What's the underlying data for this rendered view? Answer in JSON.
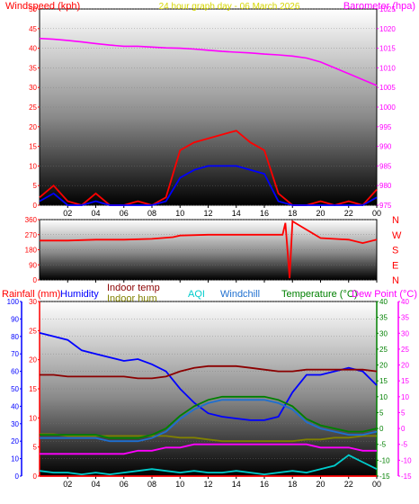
{
  "colors": {
    "windspeed": "#ff0000",
    "gust": "#0000ff",
    "barometer": "#ff00ff",
    "title": "#d6d600",
    "direction": "#ff0000",
    "rainfall": "#ff0000",
    "humidity": "#0000ff",
    "indoor_temp": "#8b0000",
    "indoor_hum": "#808000",
    "aqi": "#00cccc",
    "windchill": "#1e6fd0",
    "temperature": "#008000",
    "dew_point": "#ff00ff"
  },
  "x_ticks": [
    "02",
    "04",
    "06",
    "08",
    "10",
    "12",
    "14",
    "16",
    "18",
    "20",
    "22",
    "00"
  ],
  "chart_data": [
    {
      "type": "line",
      "title": "24 hour graph day - 06 March 2026",
      "ylabel_left": "Windspeed (kph)",
      "ylabel_right": "Barometer (hpa)",
      "ylim_left": [
        0,
        50
      ],
      "ylim_right": [
        975,
        1025
      ],
      "y_ticks_left": [
        0,
        5,
        10,
        15,
        20,
        25,
        30,
        35,
        40,
        45,
        50
      ],
      "y_ticks_right": [
        975,
        980,
        985,
        990,
        995,
        1000,
        1005,
        1010,
        1015,
        1020,
        1025
      ],
      "x": [
        0,
        1,
        2,
        3,
        4,
        5,
        6,
        7,
        8,
        9,
        10,
        11,
        12,
        13,
        14,
        15,
        16,
        17,
        18,
        19,
        20,
        21,
        22,
        23,
        24
      ],
      "series": [
        {
          "name": "Windspeed",
          "axis": "left",
          "values": [
            2,
            5,
            1,
            0,
            3,
            0,
            0,
            1,
            0,
            2,
            14,
            16,
            17,
            18,
            19,
            16,
            14,
            3,
            0,
            0,
            1,
            0,
            1,
            0,
            4
          ]
        },
        {
          "name": "Gust",
          "axis": "left",
          "values": [
            1,
            3,
            0,
            0,
            1,
            0,
            0,
            0,
            0,
            1,
            7,
            9,
            10,
            10,
            10,
            9,
            8,
            1,
            0,
            0,
            0,
            0,
            0,
            0,
            2
          ]
        },
        {
          "name": "Barometer",
          "axis": "right",
          "values": [
            1017.5,
            1017.3,
            1017,
            1016.6,
            1016.2,
            1015.8,
            1015.5,
            1015.5,
            1015.3,
            1015.1,
            1015.0,
            1014.8,
            1014.5,
            1014.2,
            1014.0,
            1013.8,
            1013.5,
            1013.3,
            1013.0,
            1012.5,
            1011.5,
            1010.0,
            1008.5,
            1007.0,
            1005.5
          ]
        }
      ]
    },
    {
      "type": "line",
      "title": "",
      "ylim": [
        0,
        360
      ],
      "y_ticks": [
        0,
        90,
        180,
        270,
        360
      ],
      "compass_labels": [
        "N",
        "W",
        "S",
        "E",
        "N"
      ],
      "x": [
        0,
        2,
        4,
        6,
        8,
        9.5,
        10,
        12,
        14,
        16,
        17.3,
        17.5,
        17.8,
        18,
        20,
        22,
        23,
        24
      ],
      "series": [
        {
          "name": "Wind direction",
          "values": [
            235,
            235,
            240,
            240,
            245,
            255,
            265,
            270,
            270,
            270,
            270,
            340,
            10,
            350,
            250,
            240,
            220,
            240
          ]
        }
      ]
    },
    {
      "type": "line",
      "title": "",
      "axes": [
        {
          "label": "Rainfall (mm)",
          "ticks": [
            0,
            5,
            10,
            15,
            20,
            25,
            30,
            35,
            40,
            45,
            50,
            55,
            60,
            65,
            70,
            75,
            80,
            85,
            90,
            95,
            100
          ]
        },
        {
          "label": "Humidity",
          "ticks": [
            0,
            5,
            10,
            15,
            20,
            25,
            30
          ]
        },
        {
          "label": "Temperature (°C)",
          "ticks": [
            -15,
            -10,
            -5,
            0,
            5,
            10,
            15,
            20,
            25,
            30,
            35,
            40
          ]
        },
        {
          "label": "Dew Point (°C)",
          "ticks": [
            -15,
            -10,
            -5,
            0,
            5,
            10,
            15,
            20,
            25,
            30,
            35,
            40
          ]
        }
      ],
      "legend": [
        "Indoor temp",
        "Indoor hum",
        "AQI",
        "Windchill"
      ],
      "humidity_ticks": [
        0,
        10,
        20,
        30,
        40,
        50,
        60,
        70,
        80,
        90,
        100
      ],
      "x": [
        0,
        1,
        2,
        3,
        4,
        5,
        6,
        7,
        8,
        9,
        10,
        11,
        12,
        13,
        14,
        15,
        16,
        17,
        18,
        19,
        20,
        21,
        22,
        23,
        24
      ],
      "series": [
        {
          "name": "Humidity",
          "axis": "Rainfall (mm)",
          "values": [
            82,
            80,
            78,
            72,
            70,
            68,
            66,
            67,
            64,
            60,
            50,
            42,
            36,
            34,
            33,
            32,
            32,
            34,
            48,
            58,
            58,
            60,
            62,
            60,
            52
          ]
        },
        {
          "name": "Indoor temp",
          "axis": "Rainfall (mm)",
          "values": [
            58,
            58,
            57,
            57,
            57,
            57,
            57,
            56,
            56,
            57,
            60,
            62,
            63,
            63,
            63,
            62,
            61,
            60,
            60,
            61,
            61,
            61,
            61,
            61,
            60
          ]
        },
        {
          "name": "Indoor hum",
          "axis": "Rainfall (mm)",
          "values": [
            24,
            24,
            23,
            23,
            23,
            23,
            23,
            23,
            23,
            23,
            22,
            22,
            21,
            20,
            20,
            20,
            20,
            20,
            20,
            21,
            21,
            22,
            22,
            23,
            23
          ]
        },
        {
          "name": "Temperature",
          "axis": "Temperature (°C)",
          "values": [
            -2,
            -2,
            -2,
            -2,
            -2,
            -3,
            -3,
            -3,
            -2,
            0,
            4,
            7,
            9,
            10,
            10,
            10,
            10,
            9,
            7,
            3,
            1,
            0,
            -1,
            -1,
            0
          ]
        },
        {
          "name": "Windchill",
          "axis": "Temperature (°C)",
          "values": [
            -3,
            -3,
            -3,
            -3,
            -3,
            -4,
            -4,
            -4,
            -3,
            -1,
            3,
            6,
            8,
            9,
            9,
            9,
            9,
            8,
            6,
            2,
            0,
            -1,
            -2,
            -2,
            -1
          ]
        },
        {
          "name": "Dew Point",
          "axis": "Temperature (°C)",
          "values": [
            -8,
            -8,
            -8,
            -8,
            -8,
            -8,
            -8,
            -7,
            -7,
            -6,
            -6,
            -5,
            -5,
            -5,
            -5,
            -5,
            -5,
            -5,
            -5,
            -5,
            -6,
            -6,
            -6,
            -7,
            -7
          ]
        },
        {
          "name": "AQI",
          "axis": "Rainfall (mm)",
          "values": [
            3,
            2,
            2,
            1,
            2,
            1,
            2,
            3,
            4,
            3,
            2,
            3,
            2,
            2,
            3,
            2,
            1,
            2,
            3,
            2,
            4,
            6,
            12,
            8,
            4
          ]
        },
        {
          "name": "Rainfall",
          "axis": "Rainfall (mm)",
          "values": [
            0,
            0,
            0,
            0,
            0,
            0,
            0,
            0,
            0,
            0,
            0,
            0,
            0,
            0,
            0,
            0,
            0,
            0,
            0,
            0,
            0,
            0,
            0,
            0,
            0
          ]
        }
      ]
    }
  ]
}
